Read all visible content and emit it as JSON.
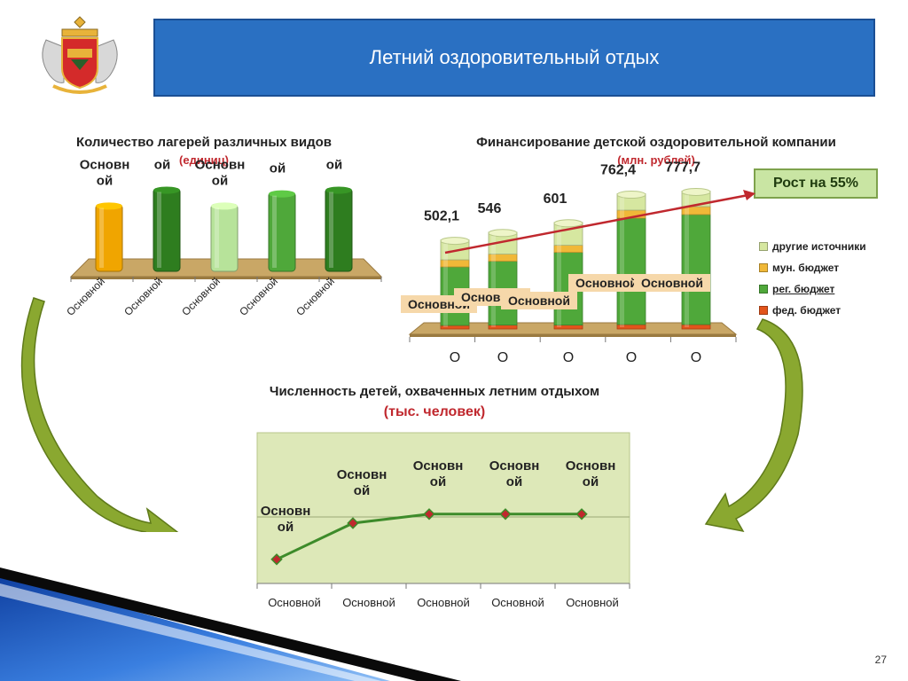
{
  "header": {
    "title": "Летний оздоровительный отдых"
  },
  "page_number": "27",
  "growth_badge": "Рост на 55%",
  "chart_data": [
    {
      "type": "bar",
      "title": "Количество лагерей различных видов",
      "subtitle": "(единиц)",
      "categories": [
        "Основной",
        "Основной",
        "Основной",
        "Основной",
        "Основной"
      ],
      "data_labels": [
        "Основной",
        "Основной",
        "Основной",
        "Основной",
        "Основной"
      ],
      "values": [
        5.5,
        6.8,
        5.5,
        6.5,
        6.8
      ],
      "ylim": [
        0,
        8
      ],
      "colors": [
        "#f0a500",
        "#2e7d1f",
        "#b7e39a",
        "#4fa83a",
        "#2e7d1f"
      ]
    },
    {
      "type": "bar",
      "stacked": true,
      "title": "Финансирование детской оздоровительной компании",
      "subtitle": "(млн. рублей)",
      "categories": [
        "О",
        "О",
        "О",
        "О",
        "О"
      ],
      "totals": [
        "502,1",
        "546",
        "601",
        "762,4",
        "777,7"
      ],
      "inner_labels": [
        "Основной",
        "Основной",
        "Основной",
        "Основной",
        "Основной"
      ],
      "series": [
        {
          "name": "фед. бюджет",
          "color": "#e2541b",
          "values": [
            20,
            22,
            22,
            25,
            25
          ]
        },
        {
          "name": "рег. бюджет",
          "color": "#4fa83a",
          "values": [
            330,
            360,
            410,
            600,
            620
          ]
        },
        {
          "name": "мун. бюджет",
          "color": "#f0b838",
          "values": [
            40,
            40,
            40,
            45,
            45
          ]
        },
        {
          "name": "другие источники",
          "color": "#d6e7a0",
          "values": [
            112.1,
            124,
            129,
            92.4,
            87.7
          ]
        }
      ],
      "ylim": [
        0,
        900
      ]
    },
    {
      "type": "line",
      "title": "Численность детей, охваченных летним отдыхом",
      "subtitle": "(тыс. человек)",
      "categories": [
        "Основной",
        "Основной",
        "Основной",
        "Основной",
        "Основной"
      ],
      "data_labels": [
        "Основной",
        "Основной",
        "Основной",
        "Основной",
        "Основной"
      ],
      "values": [
        0.8,
        2.0,
        2.3,
        2.3,
        2.3
      ],
      "ylim": [
        0,
        5
      ],
      "line_color": "#3d8b2a",
      "marker_color": "#c0282e",
      "plot_bg": "#dde8b8"
    }
  ]
}
